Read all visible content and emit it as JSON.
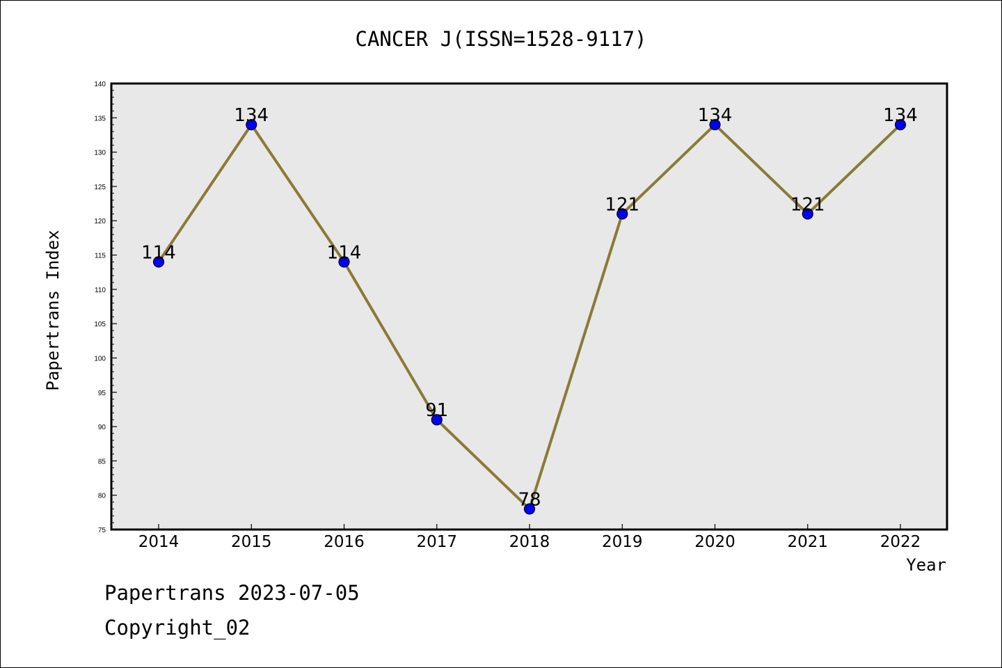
{
  "chart_data": {
    "type": "line",
    "title": "CANCER J(ISSN=1528-9117)",
    "xlabel": "Year",
    "ylabel": "Papertrans Index",
    "x": [
      "2014",
      "2015",
      "2016",
      "2017",
      "2018",
      "2019",
      "2020",
      "2021",
      "2022"
    ],
    "series": [
      {
        "values": [
          114,
          134,
          114,
          91,
          78,
          121,
          134,
          121,
          134
        ]
      }
    ],
    "ylim": [
      75,
      140
    ],
    "ytick_step": 5,
    "grid": false,
    "line_color": "#8b7a35",
    "marker_color": "#0000ff",
    "plot_background": "#e8e8e8"
  },
  "footer": {
    "line1": "Papertrans 2023-07-05",
    "line2": "Copyright_02"
  }
}
